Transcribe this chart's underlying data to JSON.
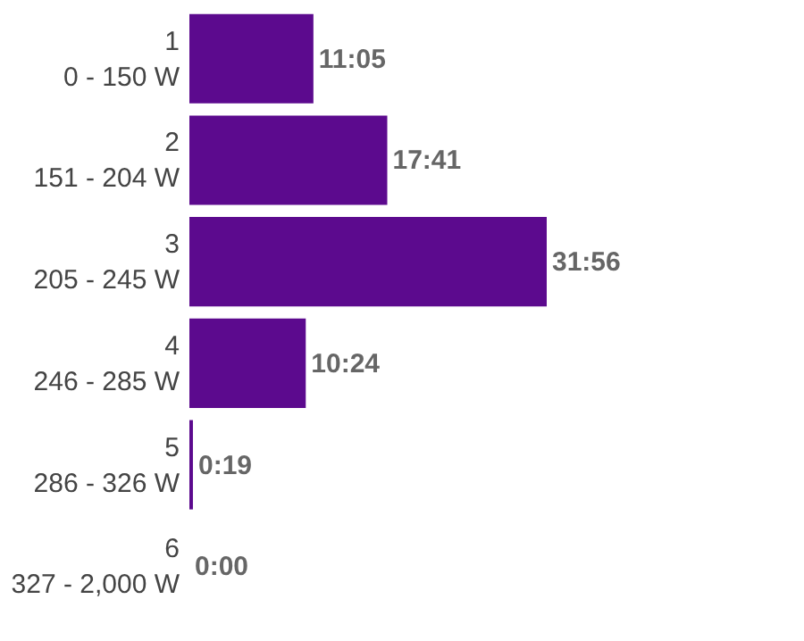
{
  "chart_data": {
    "type": "bar",
    "orientation": "horizontal",
    "categories": [
      "1\n0 - 150 W",
      "2\n151 - 204 W",
      "3\n205 - 245 W",
      "4\n246 - 285 W",
      "5\n286 - 326 W",
      "6\n327 - 2,000 W"
    ],
    "values": [
      11.0833,
      17.6833,
      31.9333,
      10.4,
      0.3167,
      0
    ],
    "value_labels": [
      "11:05",
      "17:41",
      "31:56",
      "10:24",
      "0:19",
      "0:00"
    ],
    "color": "#5c0a8e"
  }
}
